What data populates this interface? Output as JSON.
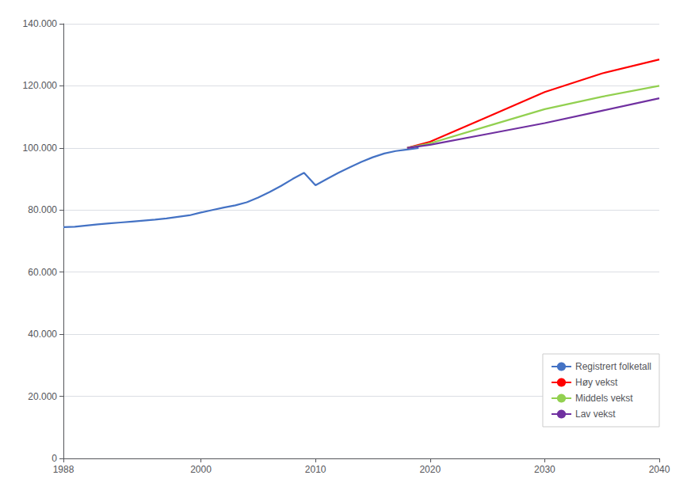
{
  "chart_data": {
    "type": "line",
    "xlim": [
      1988,
      2040
    ],
    "xticks": [
      1988,
      2000,
      2010,
      2020,
      2030,
      2040
    ],
    "ylim": [
      0,
      140000
    ],
    "yticks": [
      0,
      {
        "value": 20000,
        "label": "20.000"
      },
      {
        "value": 40000,
        "label": "40.000"
      },
      {
        "value": 60000,
        "label": "60.000"
      },
      {
        "value": 80000,
        "label": "80.000"
      },
      {
        "value": 100000,
        "label": "100.000"
      },
      {
        "value": 120000,
        "label": "120.000"
      },
      {
        "value": 140000,
        "label": "140.000"
      }
    ],
    "grid": true,
    "legend": "lower right",
    "series": [
      {
        "name": "Registrert folketall",
        "color": "#4472c4",
        "x": [
          1988,
          1989,
          1990,
          1991,
          1992,
          1993,
          1994,
          1995,
          1996,
          1997,
          1998,
          1999,
          2000,
          2001,
          2002,
          2003,
          2004,
          2005,
          2006,
          2007,
          2008,
          2009,
          2010,
          2011,
          2012,
          2013,
          2014,
          2015,
          2016,
          2017,
          2018,
          2019
        ],
        "values": [
          74500,
          74600,
          75000,
          75400,
          75700,
          76000,
          76300,
          76600,
          76900,
          77300,
          77800,
          78300,
          79200,
          80000,
          80800,
          81500,
          82500,
          84000,
          85800,
          87800,
          90000,
          92000,
          88000,
          90000,
          92000,
          93800,
          95500,
          97000,
          98200,
          99000,
          99500,
          100000
        ]
      },
      {
        "name": "Høy vekst",
        "color": "#ff0000",
        "x": [
          2018,
          2020,
          2025,
          2030,
          2035,
          2040
        ],
        "values": [
          100000,
          102000,
          110000,
          118000,
          124000,
          128500
        ]
      },
      {
        "name": "Middels vekst",
        "color": "#92d050",
        "x": [
          2018,
          2020,
          2025,
          2030,
          2035,
          2040
        ],
        "values": [
          100000,
          101500,
          107000,
          112500,
          116500,
          120000
        ]
      },
      {
        "name": "Lav vekst",
        "color": "#7030a0",
        "x": [
          2018,
          2020,
          2025,
          2030,
          2035,
          2040
        ],
        "values": [
          100000,
          101000,
          104500,
          108000,
          112000,
          116000
        ]
      }
    ]
  }
}
